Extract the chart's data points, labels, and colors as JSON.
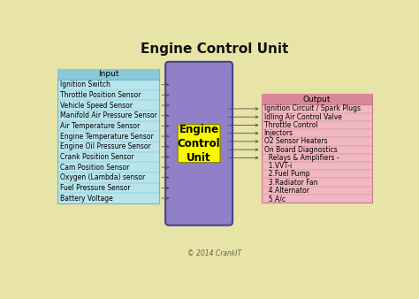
{
  "title": "Engine Control Unit",
  "background_color": "#e8e4a8",
  "input_header": "Input",
  "input_items": [
    "Ignition Switch",
    "Throttle Position Sensor",
    "Vehicle Speed Sensor",
    "Manifold Air Pressure Sensor",
    "Air Temperature Sensor",
    "Engine Temperature Sensor",
    "Engine Oil Pressure Sensor",
    "Crank Position Sensor",
    "Cam Position Sensor",
    "Oxygen (Lambda) sensor",
    "Fuel Pressure Sensor",
    "Battery Voltage"
  ],
  "output_header": "Output",
  "output_items_arrow": [
    "Ignition Circuit / Spark Plugs",
    "Idling Air Control Valve",
    "Throttle Control",
    "Injectors",
    "O2 Sensor Heaters",
    "On Board Diagnostics",
    "  Relays & Amplifiers -"
  ],
  "output_items_noarrow": [
    "  1.VVT-i",
    "  2.Fuel Pump",
    "  3.Radiator Fan",
    "  4.Alternator",
    "  5.A/c"
  ],
  "ecu_label": "Engine\nControl\nUnit",
  "copyright": "© 2014 CrankIT",
  "input_box_color": "#b8e4ec",
  "input_header_color": "#88c8d8",
  "output_box_color": "#f0b8c0",
  "output_header_color": "#d88898",
  "ecu_box_color": "#9080c8",
  "ecu_label_bg": "#f8f800",
  "arrow_color": "#505050",
  "line_color_in": "#70b8c8",
  "line_color_out": "#c87888",
  "title_fontsize": 11,
  "item_fontsize": 5.5,
  "header_fontsize": 6.5,
  "ecu_fontsize": 8.5,
  "copyright_fontsize": 5.5
}
